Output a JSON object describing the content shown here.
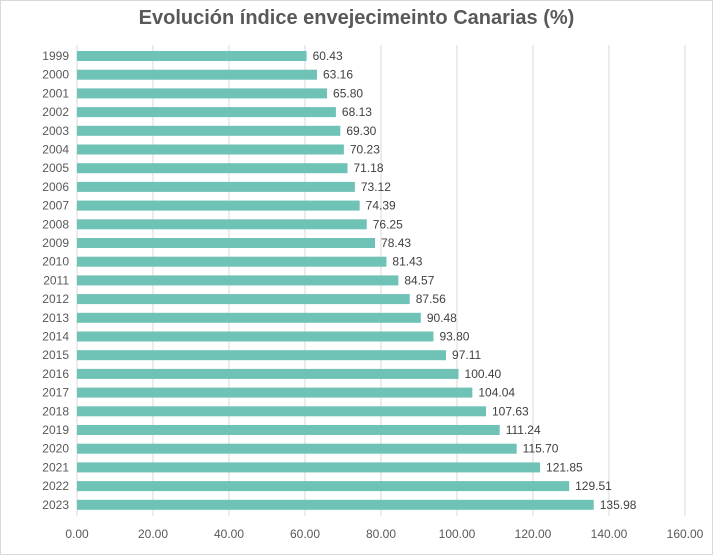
{
  "chart_data": {
    "type": "bar",
    "orientation": "horizontal",
    "title": "Evolución índice envejecimeinto Canarias (%)",
    "xlabel": "",
    "ylabel": "",
    "xlim": [
      0,
      160
    ],
    "x_ticks": [
      "0.00",
      "20.00",
      "40.00",
      "60.00",
      "80.00",
      "100.00",
      "120.00",
      "140.00",
      "160.00"
    ],
    "grid": "vertical",
    "bar_color": "#6ec2b6",
    "categories": [
      "1999",
      "2000",
      "2001",
      "2002",
      "2003",
      "2004",
      "2005",
      "2006",
      "2007",
      "2008",
      "2009",
      "2010",
      "2011",
      "2012",
      "2013",
      "2014",
      "2015",
      "2016",
      "2017",
      "2018",
      "2019",
      "2020",
      "2021",
      "2022",
      "2023"
    ],
    "values": [
      60.43,
      63.16,
      65.8,
      68.13,
      69.3,
      70.23,
      71.18,
      73.12,
      74.39,
      76.25,
      78.43,
      81.43,
      84.57,
      87.56,
      90.48,
      93.8,
      97.11,
      100.4,
      104.04,
      107.63,
      111.24,
      115.7,
      121.85,
      129.51,
      135.98
    ],
    "data_labels": [
      "60.43",
      "63.16",
      "65.80",
      "68.13",
      "69.30",
      "70.23",
      "71.18",
      "73.12",
      "74.39",
      "76.25",
      "78.43",
      "81.43",
      "84.57",
      "87.56",
      "90.48",
      "93.80",
      "97.11",
      "100.40",
      "104.04",
      "107.63",
      "111.24",
      "115.70",
      "121.85",
      "129.51",
      "135.98"
    ]
  }
}
